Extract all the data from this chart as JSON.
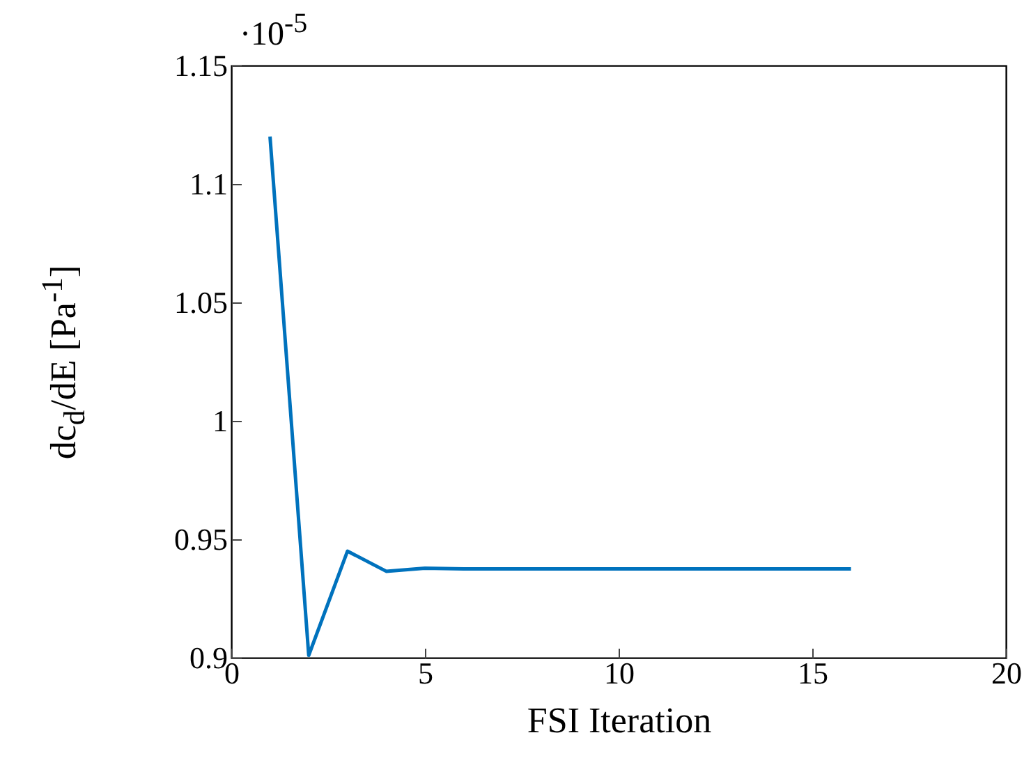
{
  "chart_data": {
    "type": "line",
    "xlabel": "FSI Iteration",
    "ylabel": "dc$_{d}$/dE [Pa$^{-1}$]",
    "annotations": [
      "·10$^{-5}$"
    ],
    "x": [
      1,
      2,
      3,
      4,
      5,
      6,
      7,
      8,
      9,
      10,
      11,
      12,
      13,
      14,
      15,
      16
    ],
    "series": [
      {
        "color": "#0072bd",
        "values": [
          1.12,
          0.901,
          0.945,
          0.9365,
          0.9378,
          0.9375,
          0.9375,
          0.9375,
          0.9375,
          0.9375,
          0.9375,
          0.9375,
          0.9375,
          0.9375,
          0.9375,
          0.9375
        ]
      }
    ],
    "xlim": [
      0,
      20
    ],
    "xticks": [
      0,
      5,
      10,
      15,
      20
    ],
    "ylim": [
      0.9,
      1.15
    ],
    "yticks": [
      0.9,
      0.95,
      1,
      1.05,
      1.1,
      1.15
    ],
    "grid": false,
    "line_style": "solid",
    "marker": "none"
  }
}
